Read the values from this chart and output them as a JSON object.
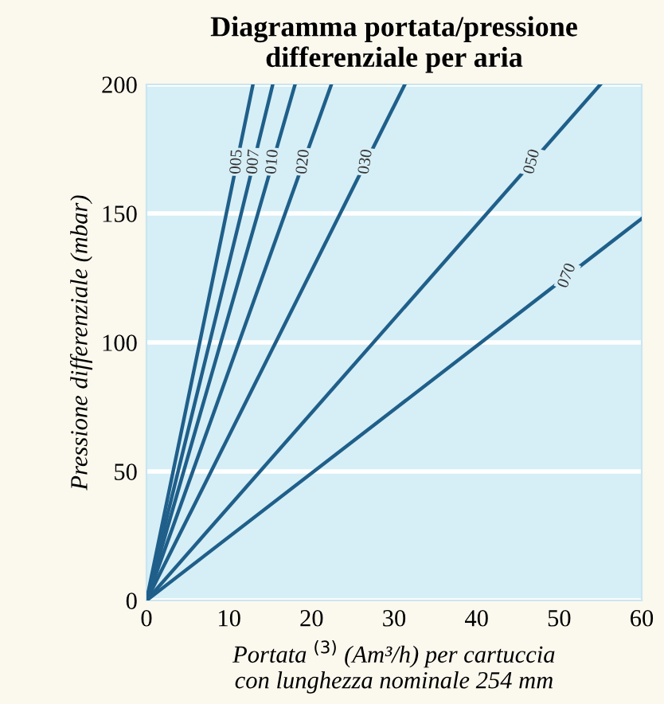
{
  "chart_data": {
    "type": "line",
    "title": "Diagramma portata/pressione\ndifferenziale per aria",
    "xlabel": "Portata $^{(3)}$ (Am³/h) per cartuccia\ncon lunghezza nominale 254 mm",
    "ylabel": "Pressione differenziale (mbar)",
    "series": [
      {
        "name": "005",
        "color": "#1f5f8a",
        "x": [
          0,
          12.9
        ],
        "values": [
          0,
          200
        ]
      },
      {
        "name": "007",
        "color": "#1f5f8a",
        "x": [
          0,
          15.3
        ],
        "values": [
          0,
          200
        ]
      },
      {
        "name": "010",
        "color": "#1f5f8a",
        "x": [
          0,
          18
        ],
        "values": [
          0,
          200
        ]
      },
      {
        "name": "020",
        "color": "#1f5f8a",
        "x": [
          0,
          22.4
        ],
        "values": [
          0,
          200
        ]
      },
      {
        "name": "030",
        "color": "#1f5f8a",
        "x": [
          0,
          31.3
        ],
        "values": [
          0,
          200
        ]
      },
      {
        "name": "050",
        "color": "#1f5f8a",
        "x": [
          0,
          55
        ],
        "values": [
          0,
          200
        ]
      },
      {
        "name": "070",
        "color": "#1f5f8a",
        "x": [
          0,
          60
        ],
        "values": [
          0,
          148
        ]
      }
    ],
    "xlim": [
      0,
      60
    ],
    "ylim": [
      0,
      200
    ],
    "xticks": [
      0,
      10,
      20,
      30,
      40,
      50,
      60
    ],
    "yticks": [
      0,
      50,
      100,
      150,
      200
    ],
    "grid": "y",
    "line_style": "solid"
  }
}
